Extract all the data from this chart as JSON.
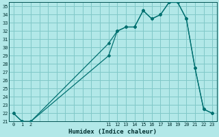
{
  "xlabel": "Humidex (Indice chaleur)",
  "bg_color": "#b2e8e8",
  "grid_color": "#80c8c8",
  "line_color": "#007070",
  "ylim": [
    21,
    35.5
  ],
  "ytick_min": 21,
  "ytick_max": 35,
  "ytick_step": 1,
  "xticks_pos": [
    0,
    1,
    2,
    3,
    4,
    5,
    6,
    7,
    8,
    9,
    10,
    11,
    12,
    13,
    14,
    15,
    16,
    17,
    18,
    19,
    20,
    21,
    22,
    23
  ],
  "xtick_labels_visible": [
    0,
    1,
    2,
    11,
    12,
    13,
    14,
    15,
    16,
    17,
    18,
    19,
    20,
    21,
    22,
    23
  ],
  "series1_x": [
    0,
    1,
    2,
    11,
    12,
    13,
    14,
    15,
    16,
    17,
    18,
    19,
    20,
    21,
    22,
    23
  ],
  "series1_y": [
    22.0,
    21.0,
    21.0,
    29.0,
    32.0,
    32.5,
    32.5,
    34.5,
    33.5,
    34.0,
    35.5,
    35.5,
    33.5,
    27.5,
    22.5,
    22.0
  ],
  "series2_x": [
    0,
    1,
    2,
    11,
    12,
    13,
    14,
    15,
    16,
    17,
    18,
    19,
    20,
    21,
    22,
    23
  ],
  "series2_y": [
    22.0,
    21.0,
    21.0,
    30.5,
    32.0,
    32.5,
    32.5,
    34.5,
    33.5,
    34.0,
    35.5,
    35.5,
    33.5,
    27.5,
    22.5,
    22.0
  ],
  "marker": "D",
  "markersize": 2.0,
  "linewidth": 0.9,
  "tick_fontsize": 5.0,
  "xlabel_fontsize": 6.5
}
